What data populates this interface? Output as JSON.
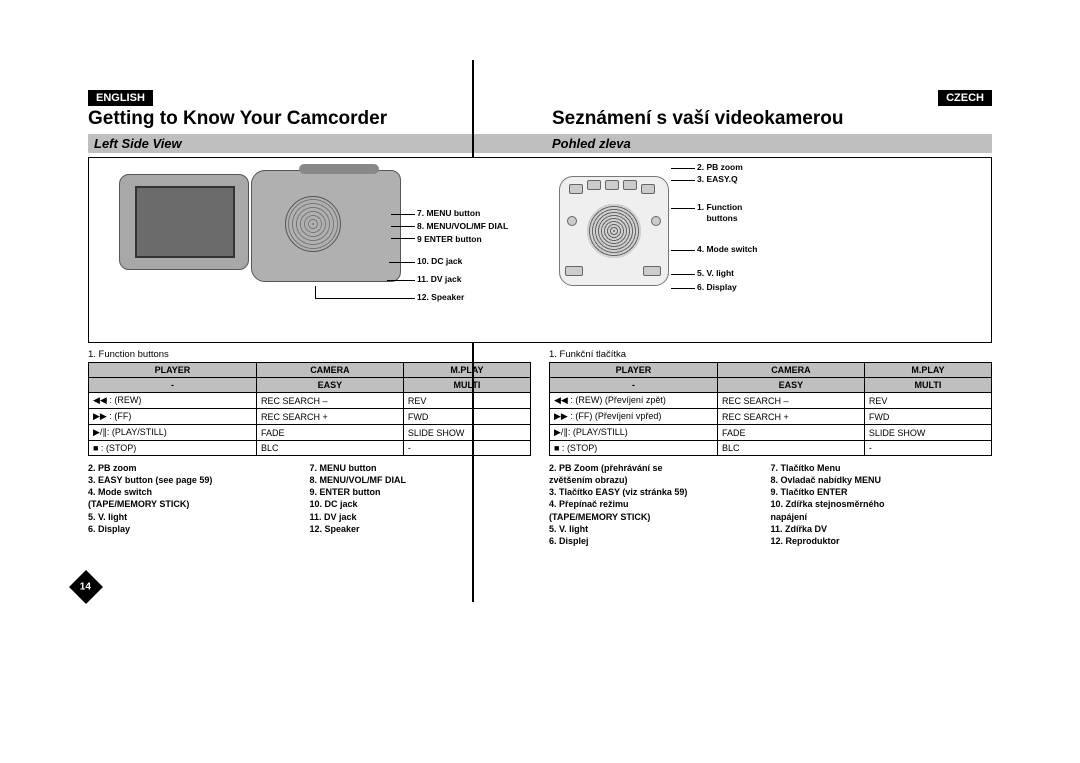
{
  "lang_left": "ENGLISH",
  "lang_right": "CZECH",
  "title_left": "Getting to Know Your Camcorder",
  "title_right": "Seznámení s vaší videokamerou",
  "sub_left": "Left Side View",
  "sub_right": "Pohled zleva",
  "diagram_labels": {
    "c7": "7. MENU button",
    "c8": "8. MENU/VOL/MF DIAL",
    "c9": "9 ENTER button",
    "c10": "10. DC jack",
    "c11": "11. DV jack",
    "c12": "12. Speaker",
    "p2": "2. PB zoom",
    "p3": "3. EASY.Q",
    "p1": "1. Function\n    buttons",
    "p4": "4. Mode switch",
    "p5": "5. V. light",
    "p6": "6. Display"
  },
  "tbl_caption_en": "1.   Function buttons",
  "tbl_caption_cz": "1.   Funkční tlačítka",
  "headers": {
    "h1": "PLAYER",
    "h2": "CAMERA",
    "h3": "M.PLAY"
  },
  "easy_row": {
    "c1": "-",
    "c2": "EASY",
    "c3": "MULTI"
  },
  "rows_en": [
    {
      "c1": "◀◀ : (REW)",
      "c2": "REC SEARCH –",
      "c3": "REV"
    },
    {
      "c1": "▶▶ : (FF)",
      "c2": "REC SEARCH +",
      "c3": "FWD"
    },
    {
      "c1": "▶/∥: (PLAY/STILL)",
      "c2": "FADE",
      "c3": "SLIDE SHOW"
    },
    {
      "c1": "■ : (STOP)",
      "c2": "BLC",
      "c3": "-"
    }
  ],
  "rows_cz": [
    {
      "c1": "◀◀ : (REW) (Převíjení zpět)",
      "c2": "REC SEARCH –",
      "c3": "REV"
    },
    {
      "c1": "▶▶ : (FF) (Převíjení vpřed)",
      "c2": "REC SEARCH +",
      "c3": "FWD"
    },
    {
      "c1": "▶/∥: (PLAY/STILL)",
      "c2": "FADE",
      "c3": "SLIDE SHOW"
    },
    {
      "c1": "■ : (STOP)",
      "c2": "BLC",
      "c3": "-"
    }
  ],
  "list_en_a": [
    "2.   PB zoom",
    "3.   EASY button (see page 59)",
    "4.   Mode switch",
    "      (TAPE/MEMORY STICK)",
    "5.   V. light",
    "6.   Display"
  ],
  "list_en_b": [
    "7.   MENU button",
    "8.   MENU/VOL/MF DIAL",
    "9.   ENTER button",
    "10.  DC jack",
    "11.  DV jack",
    "12.  Speaker"
  ],
  "list_cz_a": [
    "2.   PB Zoom (přehrávání se",
    "      zvětšením obrazu)",
    "3.   Tlačítko EASY (viz stránka 59)",
    "4.   Přepínač režimu",
    "      (TAPE/MEMORY STICK)",
    "5.   V. light",
    "6.   Displej"
  ],
  "list_cz_b": [
    "7.   Tlačítko Menu",
    "8.   Ovladač nabídky MENU",
    "9.   Tlačítko ENTER",
    "10.  Zdířka stejnosměrného",
    "       napájení",
    "11.  Zdířka DV",
    "12.  Reproduktor"
  ],
  "page_number": "14"
}
